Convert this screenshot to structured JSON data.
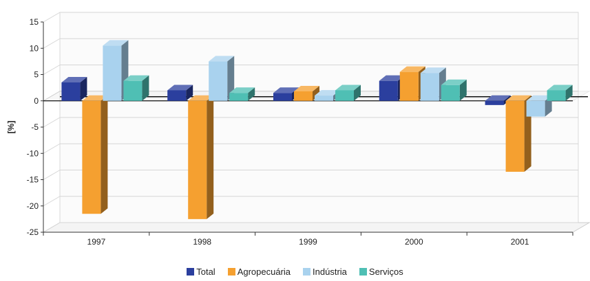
{
  "chart_data": {
    "type": "bar",
    "title": "",
    "xlabel": "",
    "ylabel": "[%]",
    "ylim": [
      -25,
      15
    ],
    "yticks": [
      15,
      10,
      5,
      0,
      -5,
      -10,
      -15,
      -20,
      -25
    ],
    "categories": [
      "1997",
      "1998",
      "1999",
      "2000",
      "2001"
    ],
    "series": [
      {
        "name": "Total",
        "color": "#2b3f9e",
        "values": [
          3.5,
          2.0,
          1.5,
          3.8,
          -0.8
        ]
      },
      {
        "name": "Agropecuária",
        "color": "#f5a030",
        "values": [
          -21.5,
          -22.5,
          1.8,
          5.5,
          -13.5
        ]
      },
      {
        "name": "Indústria",
        "color": "#a9d2ee",
        "values": [
          10.5,
          7.5,
          1.0,
          5.3,
          -3.0
        ]
      },
      {
        "name": "Serviços",
        "color": "#4fbfb4",
        "values": [
          3.8,
          1.5,
          2.0,
          3.0,
          2.0
        ]
      }
    ],
    "grid": true,
    "legend_position": "bottom"
  }
}
